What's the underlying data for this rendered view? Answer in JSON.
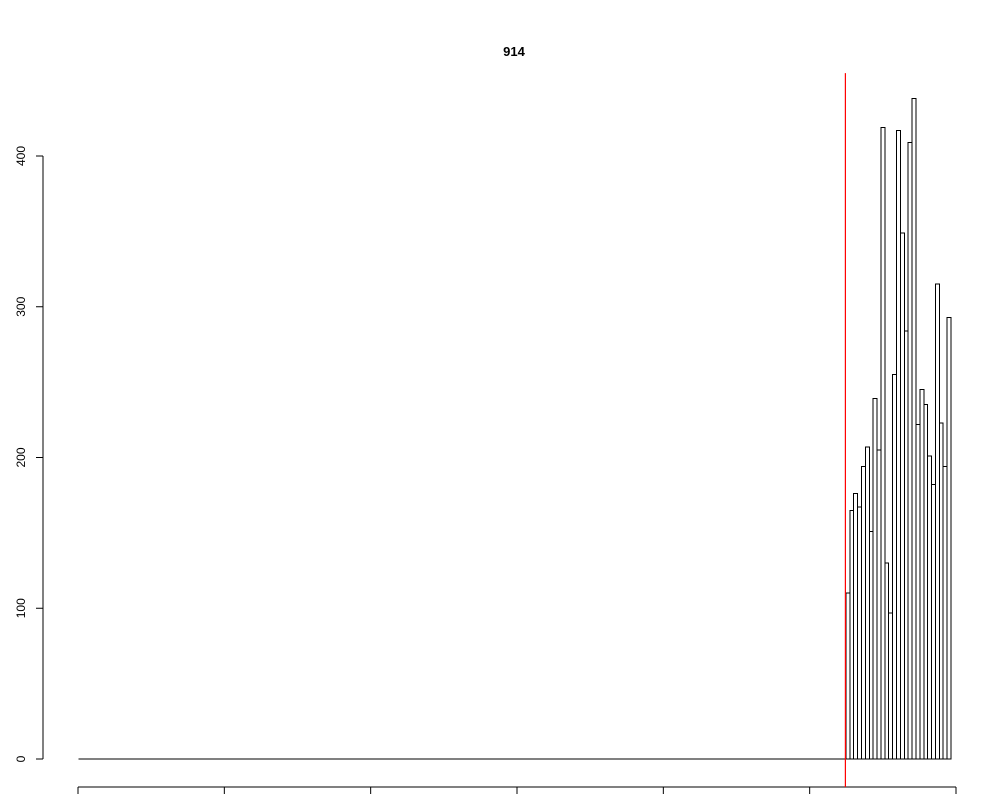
{
  "chart_data": {
    "type": "bar",
    "title": "914",
    "xlabel": "",
    "ylabel": "",
    "ylim": [
      0,
      455
    ],
    "yticks": [
      0,
      100,
      200,
      300,
      400
    ],
    "x_tick_count": 7,
    "vline_color": "#ff0000",
    "bar_fill": "#ffffff",
    "bar_stroke": "#000000",
    "grid": false,
    "zero_bar_count": 197,
    "vline_after_bar": 197,
    "values": [
      110,
      165,
      176,
      167,
      194,
      207,
      151,
      239,
      205,
      419,
      130,
      97,
      255,
      417,
      349,
      284,
      409,
      438,
      222,
      245,
      235,
      201,
      182,
      315,
      223,
      194,
      293
    ]
  }
}
